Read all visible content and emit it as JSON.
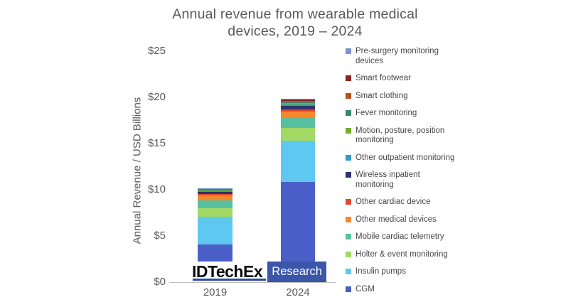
{
  "title": {
    "line1": "Annual revenue from wearable medical",
    "line2": "devices, 2019 – 2024"
  },
  "y_axis": {
    "label": "Annual Revenue / USD Billions",
    "ticks": [
      "$0",
      "$5",
      "$10",
      "$15",
      "$20",
      "$25"
    ]
  },
  "logo": {
    "wordmark": "IDTechEx",
    "badge": "Research",
    "underline_color": "#2c4aa0",
    "badge_color": "#3b55a8"
  },
  "chart_data": {
    "type": "bar",
    "stacked": true,
    "title": "Annual revenue from wearable medical devices, 2019 – 2024",
    "xlabel": "",
    "ylabel": "Annual Revenue / USD Billions",
    "ylim": [
      0,
      25
    ],
    "grid": false,
    "legend_position": "right",
    "categories": [
      "2019",
      "2024"
    ],
    "units": "USD Billions",
    "series": [
      {
        "name": "CGM",
        "color": "#4a60c8",
        "values": [
          4.1,
          10.85
        ],
        "legend_lines": [
          "CGM"
        ]
      },
      {
        "name": "Insulin pumps",
        "color": "#5ec8f0",
        "values": [
          3.0,
          4.45
        ],
        "legend_lines": [
          "Insulin pumps"
        ]
      },
      {
        "name": "Holter & event monitoring",
        "color": "#a2d964",
        "values": [
          0.9,
          1.4
        ],
        "legend_lines": [
          "Holter & event monitoring"
        ]
      },
      {
        "name": "Mobile cardiac telemetry",
        "color": "#57c0a0",
        "values": [
          0.85,
          1.15
        ],
        "legend_lines": [
          "Mobile cardiac telemetry"
        ]
      },
      {
        "name": "Other medical devices",
        "color": "#f5882e",
        "values": [
          0.5,
          0.6
        ],
        "legend_lines": [
          "Other medical devices"
        ]
      },
      {
        "name": "Other cardiac device",
        "color": "#e2492b",
        "values": [
          0.15,
          0.25
        ],
        "legend_lines": [
          "Other cardiac device"
        ]
      },
      {
        "name": "Wireless inpatient monitoring",
        "color": "#2e3470",
        "values": [
          0.25,
          0.4
        ],
        "legend_lines": [
          "Wireless inpatient",
          "monitoring"
        ]
      },
      {
        "name": "Other outpatient monitoring",
        "color": "#2b9fc8",
        "values": [
          0.08,
          0.15
        ],
        "legend_lines": [
          "Other outpatient monitoring"
        ]
      },
      {
        "name": "Motion, posture, position monitoring",
        "color": "#76ad2d",
        "values": [
          0.05,
          0.1
        ],
        "legend_lines": [
          "Motion, posture, position",
          "monitoring"
        ]
      },
      {
        "name": "Fever monitoring",
        "color": "#2e8c72",
        "values": [
          0.12,
          0.1
        ],
        "legend_lines": [
          "Fever monitoring"
        ]
      },
      {
        "name": "Smart clothing",
        "color": "#b5551a",
        "values": [
          0.06,
          0.15
        ],
        "legend_lines": [
          "Smart clothing"
        ]
      },
      {
        "name": "Smart footwear",
        "color": "#8e2320",
        "values": [
          0.04,
          0.15
        ],
        "legend_lines": [
          "Smart footwear"
        ]
      },
      {
        "name": "Pre-surgery monitoring devices",
        "color": "#8090d4",
        "values": [
          0.02,
          0.08
        ],
        "legend_lines": [
          "Pre-surgery monitoring",
          "devices"
        ]
      }
    ]
  }
}
